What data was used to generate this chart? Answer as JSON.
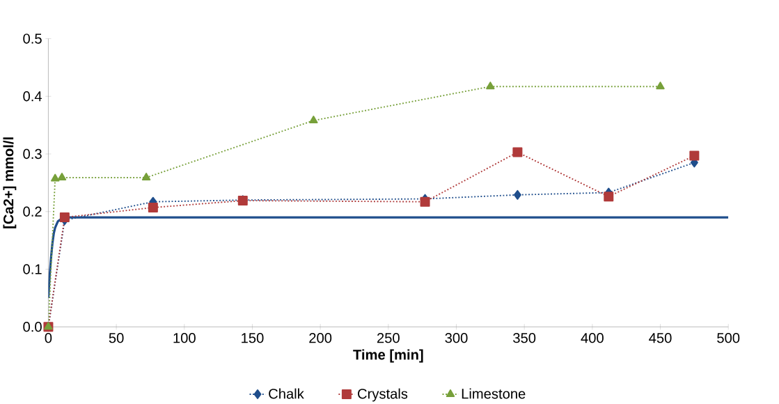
{
  "chart_data": {
    "type": "line",
    "xlabel": "Time [min]",
    "ylabel": "[Ca2+] mmol/l",
    "xlim": [
      0,
      500
    ],
    "xticks": [
      0,
      50,
      100,
      150,
      200,
      250,
      300,
      350,
      400,
      450,
      500
    ],
    "ylim": [
      0,
      0.5
    ],
    "yticks": [
      {
        "value": 0,
        "label": "0.0"
      },
      0.1,
      0.2,
      0.3,
      0.4,
      0.5
    ],
    "legend": "bottom",
    "grid": false,
    "series": [
      {
        "color": "#1f4e8c",
        "line_style": "solid",
        "marker": "none",
        "x": [
          0,
          1,
          2,
          3,
          4,
          5,
          7,
          10,
          15,
          500
        ],
        "values": [
          0.05,
          0.09,
          0.12,
          0.145,
          0.162,
          0.172,
          0.183,
          0.188,
          0.19,
          0.19
        ]
      },
      {
        "name": "Chalk",
        "color": "#1f4e8c",
        "line_style": "dotted",
        "marker": "diamond",
        "x": [
          0,
          12,
          77,
          143,
          277,
          345,
          412,
          475
        ],
        "values": [
          0,
          0.185,
          0.217,
          0.22,
          0.222,
          0.229,
          0.233,
          0.285
        ]
      },
      {
        "name": "Crystals",
        "color": "#b03a3a",
        "line_style": "dotted",
        "marker": "square",
        "x": [
          0,
          12,
          77,
          143,
          277,
          345,
          412,
          475
        ],
        "values": [
          0,
          0.19,
          0.207,
          0.219,
          0.217,
          0.303,
          0.226,
          0.297
        ]
      },
      {
        "name": "Limestone",
        "color": "#77a03a",
        "line_style": "dotted",
        "marker": "triangle",
        "x": [
          0,
          5,
          10,
          72,
          195,
          325,
          450
        ],
        "values": [
          0,
          0.257,
          0.259,
          0.259,
          0.358,
          0.417,
          0.417
        ]
      }
    ]
  }
}
